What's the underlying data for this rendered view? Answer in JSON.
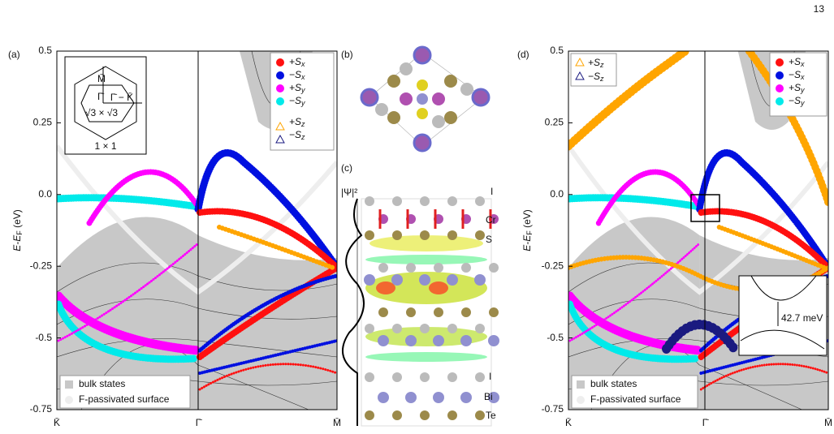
{
  "page_number": "13",
  "panel_a": {
    "label": "(a)",
    "y_label": {
      "main": "E-E",
      "sub": "F",
      "unit": " (eV)"
    },
    "y_ticks": [
      "0.5",
      "0.25",
      "0.0",
      "-0.25",
      "-0.5",
      "-0.75"
    ],
    "x_ticks": [
      "K̄",
      "Γ̄",
      "M̄"
    ],
    "legend": [
      {
        "sign": "+S",
        "sub": "x"
      },
      {
        "sign": "−S",
        "sub": "x"
      },
      {
        "sign": "+S",
        "sub": "y"
      },
      {
        "sign": "−S",
        "sub": "y"
      },
      {
        "sign": "+S",
        "sub": "z"
      },
      {
        "sign": "−S",
        "sub": "z"
      }
    ],
    "bottom_legend": [
      "bulk states",
      "F-passivated surface"
    ],
    "inset": {
      "gamma": "Γ̄",
      "m": "M̄",
      "path": "Γ̄ − K̄",
      "small_cell": "√3 × √3",
      "large_cell": "1 × 1"
    }
  },
  "panel_b": {
    "label": "(b)"
  },
  "panel_c": {
    "label": "(c)",
    "psi": "|Ψ|²",
    "layers": [
      "I",
      "Cr",
      "S",
      "I",
      "Bi",
      "Te"
    ]
  },
  "panel_d": {
    "label": "(d)",
    "y_label": {
      "main": "E-E",
      "sub": "F",
      "unit": " (eV)"
    },
    "y_ticks": [
      "0.5",
      "0.25",
      "0.0",
      "-0.25",
      "-0.5",
      "-0.75"
    ],
    "x_ticks": [
      "K̄",
      "Γ̄",
      "M̄"
    ],
    "legend_z": [
      {
        "sign": "+S",
        "sub": "z"
      },
      {
        "sign": "−S",
        "sub": "z"
      }
    ],
    "legend_xy": [
      {
        "sign": "+S",
        "sub": "x"
      },
      {
        "sign": "−S",
        "sub": "x"
      },
      {
        "sign": "+S",
        "sub": "y"
      },
      {
        "sign": "−S",
        "sub": "y"
      }
    ],
    "bottom_legend": [
      "bulk states",
      "F-passivated surface"
    ],
    "inset_label": "42.7 meV"
  }
}
